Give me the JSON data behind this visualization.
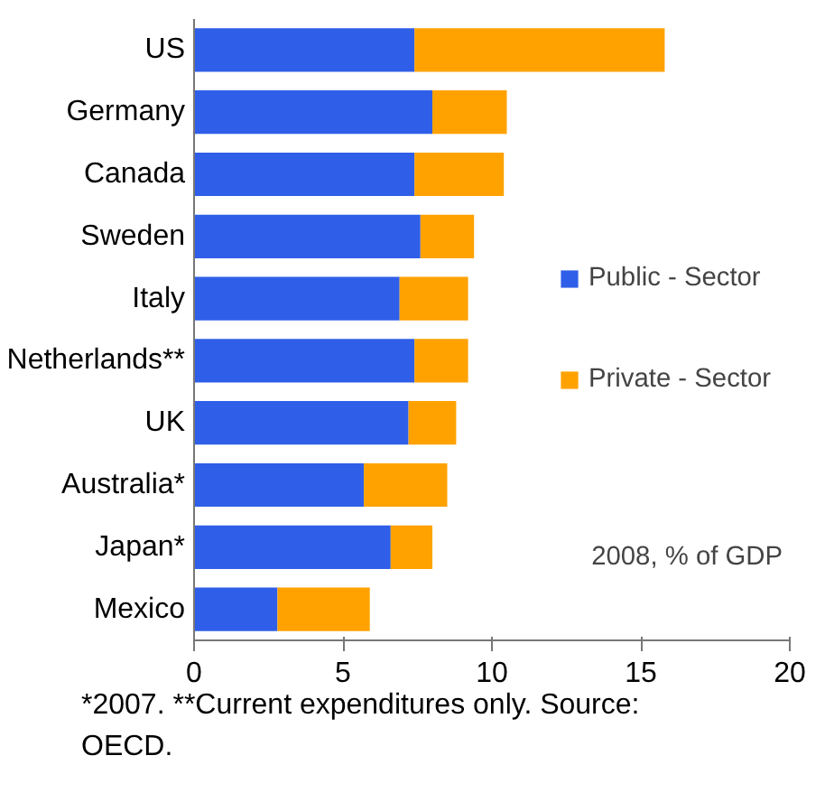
{
  "chart_data": {
    "type": "bar",
    "orientation": "horizontal",
    "stacked": true,
    "categories": [
      "US",
      "Germany",
      "Canada",
      "Sweden",
      "Italy",
      "Netherlands**",
      "UK",
      "Australia*",
      "Japan*",
      "Mexico"
    ],
    "series": [
      {
        "name": "Public - Sector",
        "color": "#2f5fe8",
        "values": [
          7.4,
          8.0,
          7.4,
          7.6,
          6.9,
          7.4,
          7.2,
          5.7,
          6.6,
          2.8
        ]
      },
      {
        "name": "Private - Sector",
        "color": "#ffa200",
        "values": [
          8.4,
          2.5,
          3.0,
          1.8,
          2.3,
          1.8,
          1.6,
          2.8,
          1.4,
          3.1
        ]
      }
    ],
    "xlim": [
      0,
      20
    ],
    "xticks": [
      0,
      5,
      10,
      15,
      20
    ],
    "grid": false,
    "legend": "right",
    "annotations": [
      "2008, % of GDP",
      "*2007. **Current expenditures only.  Source: OECD."
    ]
  }
}
